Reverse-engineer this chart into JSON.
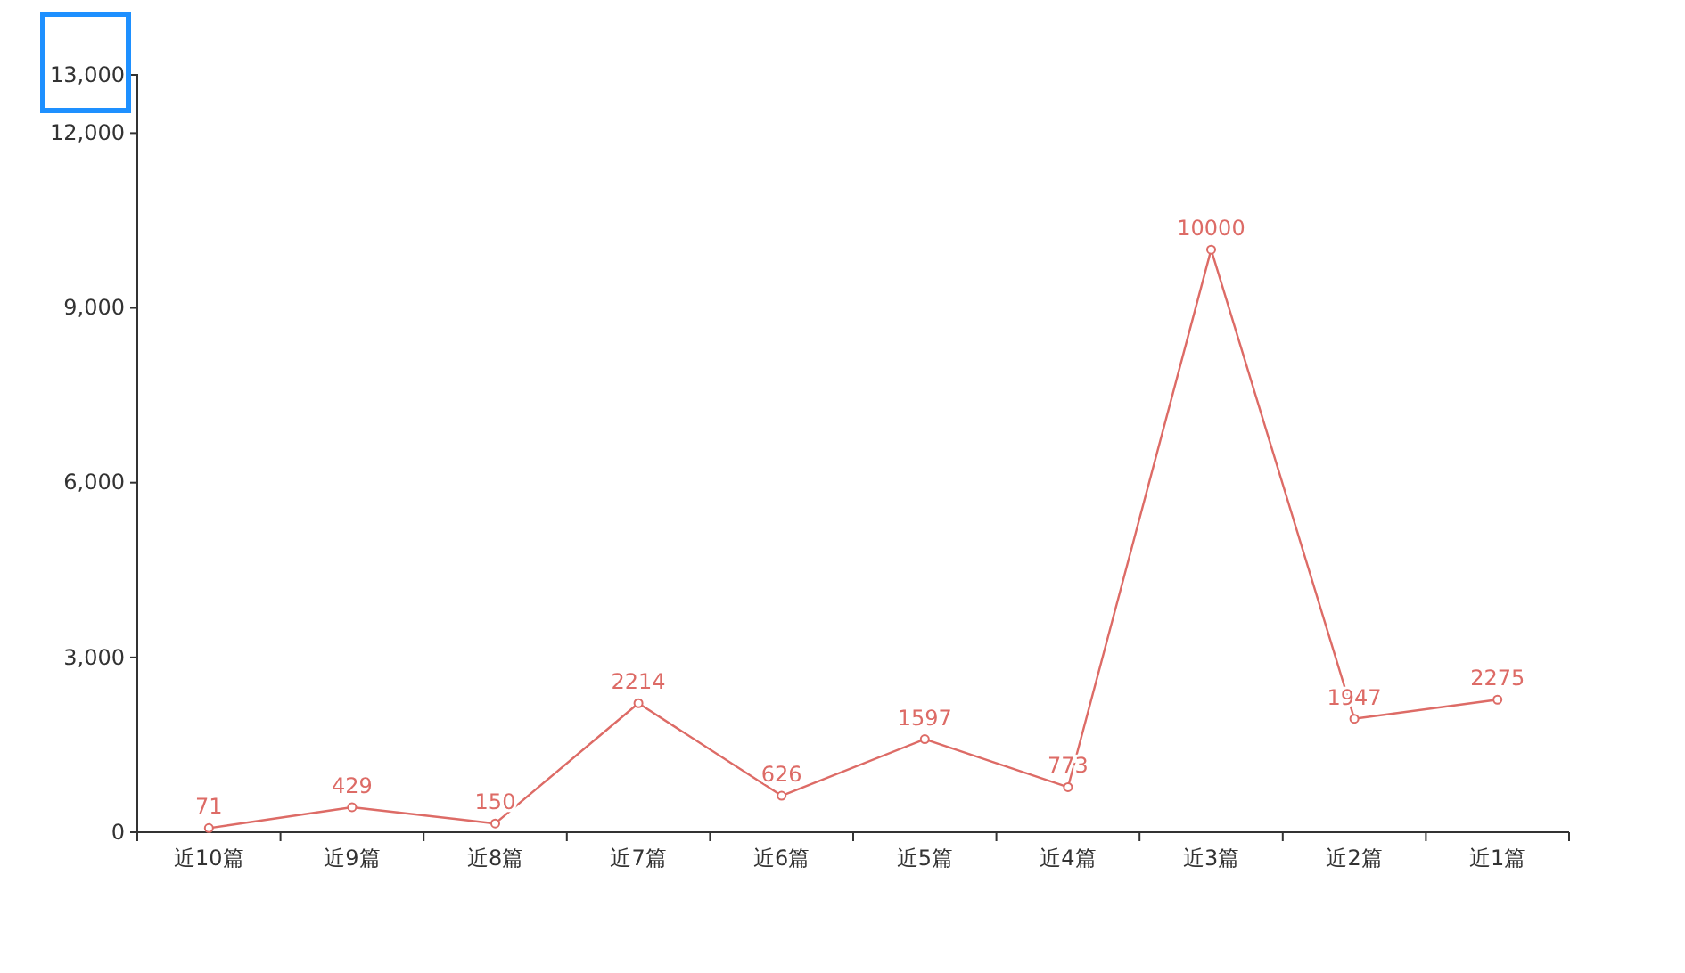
{
  "chart_data": {
    "type": "line",
    "categories": [
      "近10篇",
      "近9篇",
      "近8篇",
      "近7篇",
      "近6篇",
      "近5篇",
      "近4篇",
      "近3篇",
      "近2篇",
      "近1篇"
    ],
    "series": [
      {
        "color": "#dd6b66",
        "values": [
          71,
          429,
          150,
          2214,
          626,
          1597,
          773,
          10000,
          1947,
          2275
        ]
      }
    ],
    "ylim": [
      0,
      13000
    ],
    "yticks": [
      0,
      {
        "value": 3000,
        "label": "3,000"
      },
      {
        "value": 6000,
        "label": "6,000"
      },
      {
        "value": 9000,
        "label": "9,000"
      },
      {
        "value": 12000,
        "label": "12,000"
      },
      {
        "value": 13000,
        "label": "13,000"
      }
    ],
    "marker": "circle",
    "data_labels": true,
    "grid": false
  }
}
